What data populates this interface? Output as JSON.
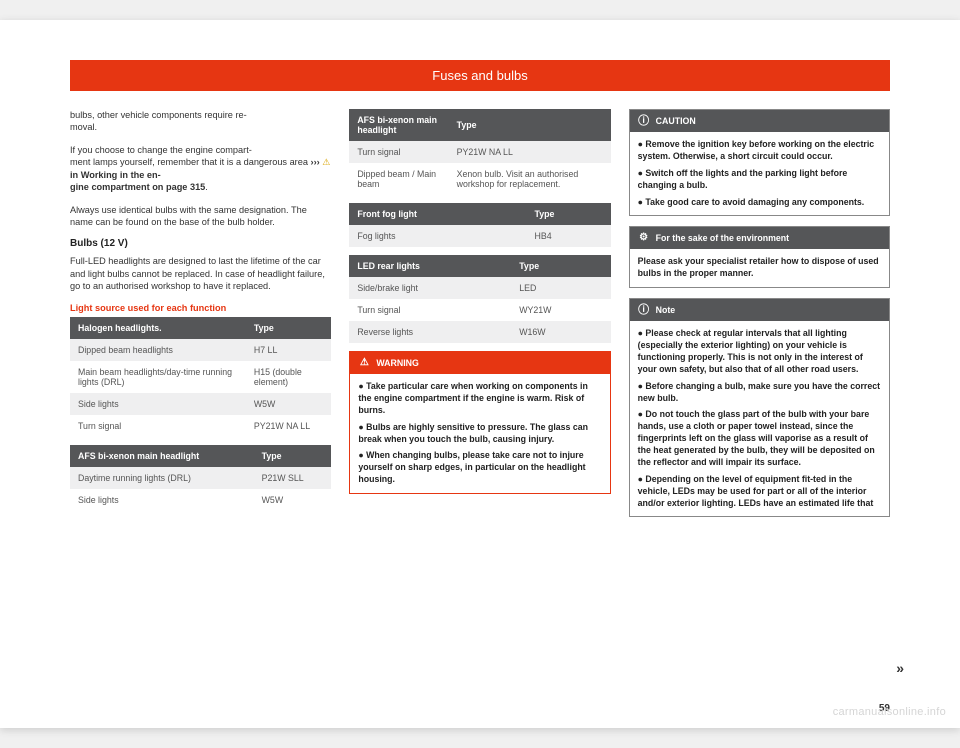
{
  "header": {
    "title": "Fuses and bulbs"
  },
  "col1": {
    "p1_a": "bulbs, other vehicle components require re",
    "p1_b": "moval.",
    "p2_a": "If you choose to change the engine compart",
    "p2_b": "ment lamps yourself, remember that it is a dangerous area ",
    "p2_link": "››› ",
    "p2_bold": "in Working in the en",
    "p2_bold2": "gine compartment on page 315",
    "p2_end": ".",
    "p3": "Always use identical bulbs with the same designation. The name can be found on the base of the bulb holder.",
    "bulbs_title": "Bulbs (12 V)",
    "p4": "Full-LED headlights are designed to last the lifetime of the car and light bulbs cannot be replaced. In case of headlight failure, go to an authorised workshop to have it replaced.",
    "redlabel": "Light source used for each function",
    "table1": {
      "h1": "Halogen headlights.",
      "h2": "Type",
      "rows": [
        [
          "Dipped beam headlights",
          "H7 LL"
        ],
        [
          "Main beam headlights/day-time running lights (DRL)",
          "H15 (double element)"
        ],
        [
          "Side lights",
          "W5W"
        ],
        [
          "Turn signal",
          "PY21W NA LL"
        ]
      ]
    },
    "table2": {
      "h1": "AFS bi-xenon main headlight",
      "h2": "Type",
      "rows": [
        [
          "Daytime running lights (DRL)",
          "P21W SLL"
        ],
        [
          "Side lights",
          "W5W"
        ]
      ]
    }
  },
  "col2": {
    "table3": {
      "h1": "AFS bi-xenon main headlight",
      "h2": "Type",
      "rows": [
        [
          "Turn signal",
          "PY21W NA LL"
        ],
        [
          "Dipped beam / Main beam",
          "Xenon bulb. Visit an authorised workshop for replacement."
        ]
      ]
    },
    "table4": {
      "h1": "Front fog light",
      "h2": "Type",
      "rows": [
        [
          "Fog lights",
          "HB4"
        ]
      ]
    },
    "table5": {
      "h1": "LED rear lights",
      "h2": "Type",
      "rows": [
        [
          "Side/brake light",
          "LED"
        ],
        [
          "Turn signal",
          "WY21W"
        ],
        [
          "Reverse lights",
          "W16W"
        ]
      ]
    },
    "warning": {
      "title": "WARNING",
      "items": [
        "Take particular care when working on components in the engine compartment if the engine is warm. Risk of burns.",
        "Bulbs are highly sensitive to pressure. The glass can break when you touch the bulb, causing injury.",
        "When changing bulbs, please take care not to injure yourself on sharp edges, in particular on the headlight housing."
      ]
    }
  },
  "col3": {
    "caution": {
      "title": "CAUTION",
      "items": [
        "Remove the ignition key before working on the electric system. Otherwise, a short circuit could occur.",
        "Switch off the lights and the parking light before changing a bulb.",
        "Take good care to avoid damaging any components."
      ]
    },
    "env": {
      "title": "For the sake of the environment",
      "body": "Please ask your specialist retailer how to dispose of used bulbs in the proper manner."
    },
    "note": {
      "title": "Note",
      "items": [
        "Please check at regular intervals that all lighting (especially the exterior lighting) on your vehicle is functioning properly. This is not only in the interest of your own safety, but also that of all other road users.",
        "Before changing a bulb, make sure you have the correct new bulb.",
        "Do not touch the glass part of the bulb with your bare hands, use a cloth or paper towel instead, since the fingerprints left on the glass will vaporise as a result of the heat generated by the bulb, they will be deposited on the reflector and will impair its surface.",
        "Depending on the level of equipment fit-ted in the vehicle, LEDs may be used for part or all of the interior and/or exterior lighting. LEDs have an estimated life that"
      ]
    }
  },
  "footer": {
    "continue": "»",
    "pagenum": "59",
    "watermark": "carmanualsonline.info"
  }
}
